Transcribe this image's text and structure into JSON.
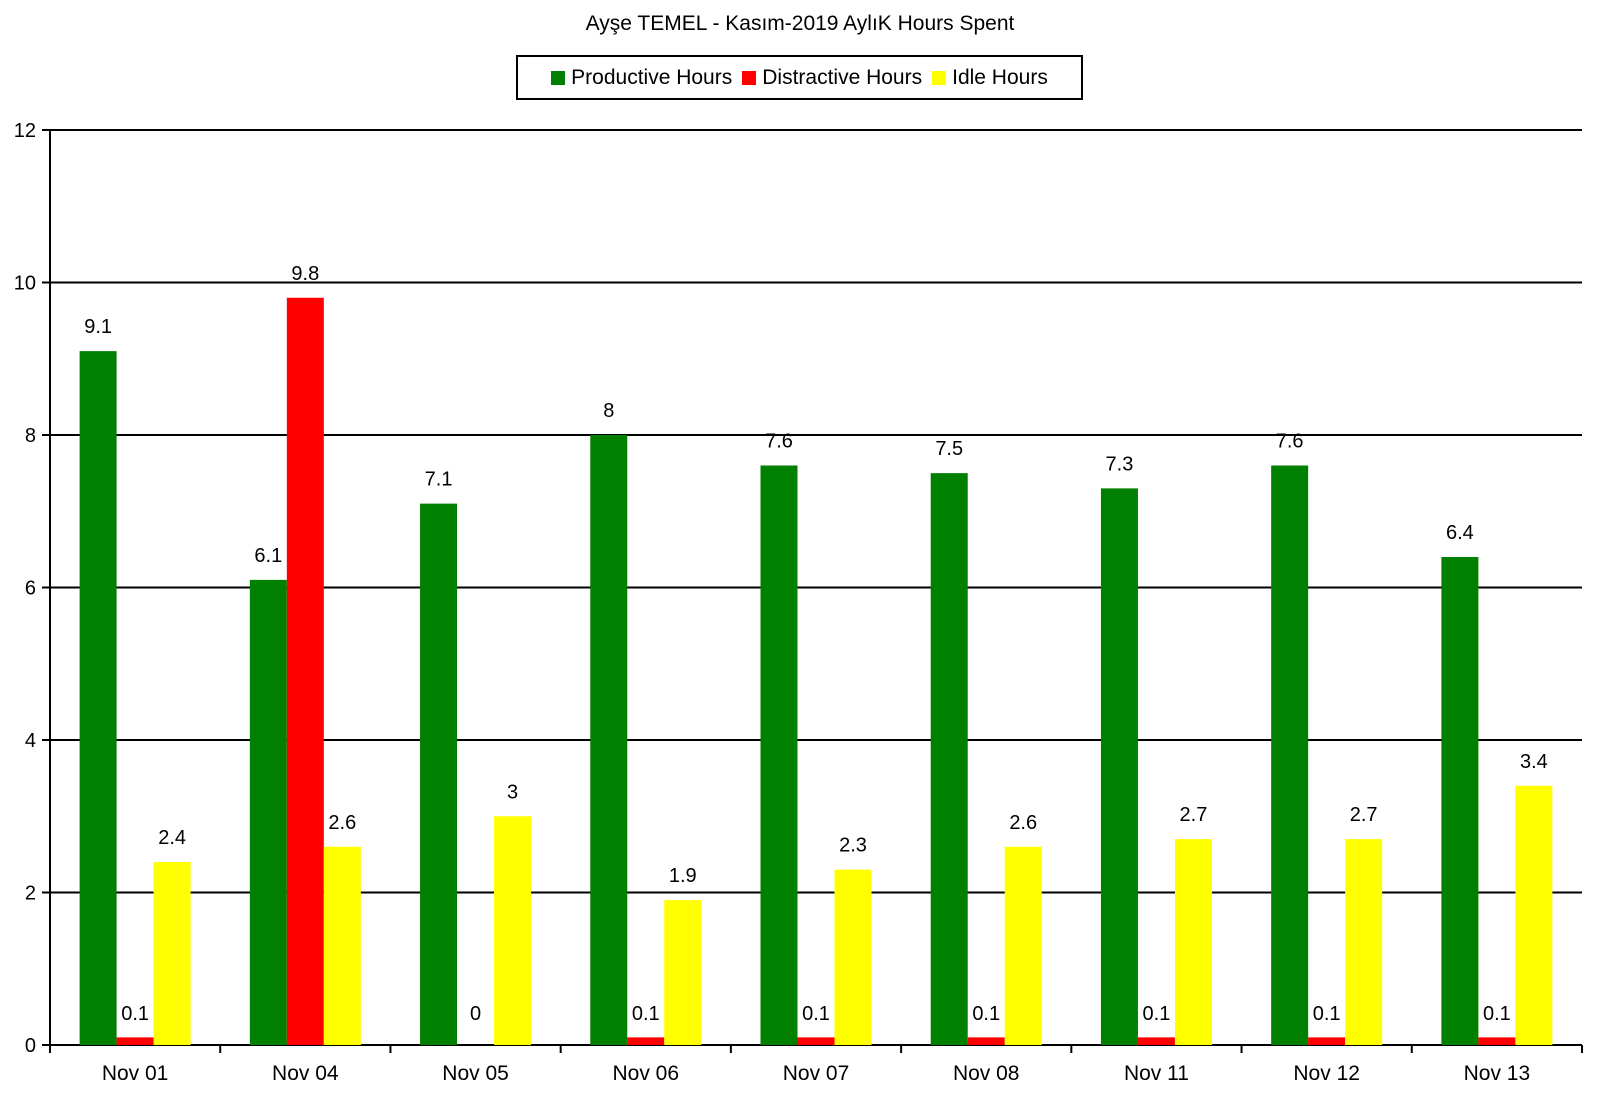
{
  "chart_data": {
    "type": "bar",
    "title": "Ayşe TEMEL - Kasım-2019 AylıK Hours Spent",
    "xlabel": "",
    "ylabel": "",
    "ylim": [
      0,
      12
    ],
    "yticks": [
      0,
      2,
      4,
      6,
      8,
      10,
      12
    ],
    "grid": true,
    "legend_position": "top-center",
    "categories": [
      "Nov 01",
      "Nov 04",
      "Nov 05",
      "Nov 06",
      "Nov 07",
      "Nov 08",
      "Nov 11",
      "Nov 12",
      "Nov 13"
    ],
    "series": [
      {
        "name": "Productive Hours",
        "color": "#008000",
        "values": [
          9.1,
          6.1,
          7.1,
          8,
          7.6,
          7.5,
          7.3,
          7.6,
          6.4
        ]
      },
      {
        "name": "Distractive Hours",
        "color": "#ff0000",
        "values": [
          0.1,
          9.8,
          0,
          0.1,
          0.1,
          0.1,
          0.1,
          0.1,
          0.1
        ]
      },
      {
        "name": "Idle Hours",
        "color": "#ffff00",
        "values": [
          2.4,
          2.6,
          3,
          1.9,
          2.3,
          2.6,
          2.7,
          2.7,
          3.4
        ]
      }
    ]
  }
}
